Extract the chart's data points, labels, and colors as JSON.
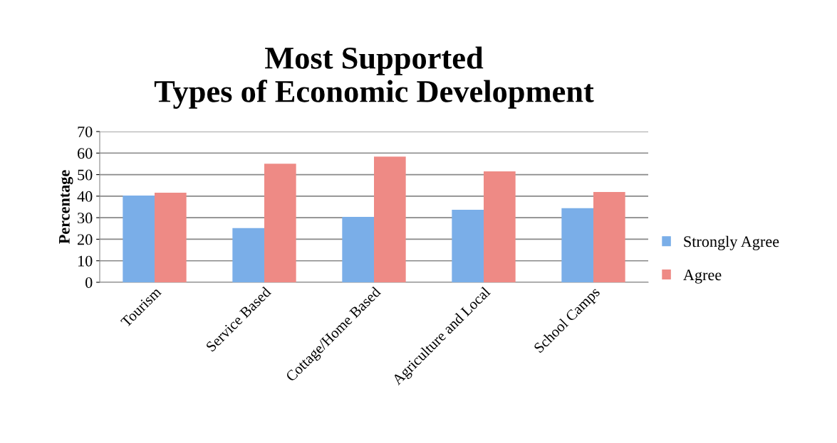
{
  "chart_data": {
    "type": "bar",
    "title": "Most Supported\nTypes of Economic Development",
    "ylabel": "Percentage",
    "categories": [
      "Tourism",
      "Service Based",
      "Cottage/Home Based",
      "Agriculture and Local",
      "School Camps"
    ],
    "series": [
      {
        "name": "Strongly Agree",
        "color": "#7aaee8",
        "values": [
          40.3,
          25.2,
          30.4,
          33.7,
          34.4
        ]
      },
      {
        "name": "Agree",
        "color": "#ee8a85",
        "values": [
          41.6,
          55.1,
          58.4,
          51.5,
          41.9
        ]
      }
    ],
    "ylim": [
      0,
      70
    ],
    "yticks": [
      0,
      10,
      20,
      30,
      40,
      50,
      60,
      70
    ],
    "grid": "y",
    "legend": "right"
  }
}
